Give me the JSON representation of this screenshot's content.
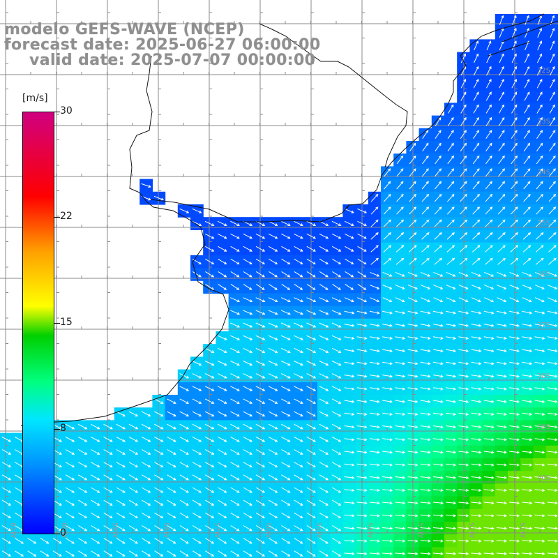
{
  "title": {
    "line1": "modelo GEFS-WAVE (NCEP)",
    "line2": "forecast date: 2025-06-27 06:00:00",
    "line3": "valid date: 2025-07-07 00:00:00"
  },
  "colorbar": {
    "unit": "[m/s]",
    "ticks": [
      "30",
      "22",
      "15",
      "8",
      "0"
    ],
    "tick_values": [
      30,
      22,
      15,
      8,
      0
    ],
    "range": [
      0,
      30
    ],
    "colors": [
      "#0000ff",
      "#00a0ff",
      "#00e6ff",
      "#00ff80",
      "#00d000",
      "#ffff00",
      "#ffa000",
      "#ff0000",
      "#d00080"
    ]
  },
  "map": {
    "lon_labels": [
      "61W",
      "60W",
      "59W",
      "58W",
      "57W",
      "56W",
      "55W",
      "54W",
      "53W",
      "52W",
      "51W"
    ],
    "lat_labels": [
      "32S",
      "33S",
      "34S",
      "35S",
      "36S",
      "37S",
      "38S",
      "39S",
      "40S"
    ],
    "lon_range": [
      -61.0,
      -50.5
    ],
    "lat_range": [
      -30.5,
      -41.0
    ],
    "grid_color": "#888888",
    "coast_color": "#111111",
    "land_color": "#ffffff",
    "arrow_color": "#ffffff",
    "wind_speed_min_m_s": 0,
    "wind_speed_max_m_s": 30
  }
}
